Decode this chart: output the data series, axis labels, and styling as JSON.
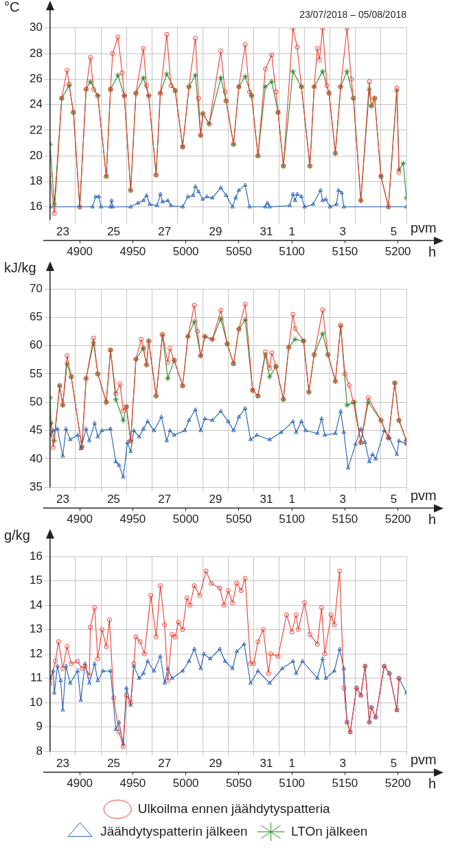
{
  "chart_data": [
    {
      "type": "line",
      "title": "23/07/2018 – 05/08/2018",
      "ylabel": "°C",
      "xlabel": "h",
      "x2label": "pvm",
      "xlim": [
        4872,
        5208
      ],
      "xticks": [
        4900,
        4950,
        5000,
        5050,
        5100,
        5150,
        5200
      ],
      "x2lim": [
        "2018-07-23T00:00",
        "2018-08-06T00:00"
      ],
      "x2ticks": [
        {
          "value": "2018-07-23T00:00",
          "label": null
        },
        {
          "value": "2018-07-23T12:00",
          "label": "23"
        },
        {
          "value": "2018-07-24T00:00",
          "label": null
        },
        {
          "value": "2018-07-25T00:00",
          "label": null
        },
        {
          "value": "2018-07-25T12:00",
          "label": "25"
        },
        {
          "value": "2018-07-26T00:00",
          "label": null
        },
        {
          "value": "2018-07-27T00:00",
          "label": null
        },
        {
          "value": "2018-07-27T12:00",
          "label": "27"
        },
        {
          "value": "2018-07-28T00:00",
          "label": null
        },
        {
          "value": "2018-07-29T00:00",
          "label": null
        },
        {
          "value": "2018-07-29T12:00",
          "label": "29"
        },
        {
          "value": "2018-07-30T00:00",
          "label": null
        },
        {
          "value": "2018-07-31T00:00",
          "label": null
        },
        {
          "value": "2018-07-31T12:00",
          "label": "31"
        },
        {
          "value": "2018-08-01T00:00",
          "label": null
        },
        {
          "value": "2018-08-01T12:00",
          "label": "1"
        },
        {
          "value": "2018-08-02T00:00",
          "label": null
        },
        {
          "value": "2018-08-03T00:00",
          "label": null
        },
        {
          "value": "2018-08-03T12:00",
          "label": "3"
        },
        {
          "value": "2018-08-04T00:00",
          "label": null
        },
        {
          "value": "2018-08-05T00:00",
          "label": null
        },
        {
          "value": "2018-08-05T12:00",
          "label": "5"
        },
        {
          "value": "2018-08-06T00:00",
          "label": null
        }
      ],
      "ylim": [
        15,
        30
      ],
      "yticks": [
        16,
        18,
        20,
        22,
        24,
        26,
        28,
        30
      ],
      "grid": true,
      "legend": false,
      "series": [
        {
          "color": "#ee3b2f",
          "marker": "circle",
          "x": [
            4872,
            4876,
            4883,
            4888,
            4890,
            4894,
            4900,
            4906,
            4910,
            4913,
            4917,
            4925,
            4929,
            4931,
            4936,
            4940,
            4942,
            4948,
            4953,
            4960,
            4963,
            4965,
            4972,
            4976,
            4982,
            4986,
            4990,
            4997,
            5003,
            5009,
            5012,
            5014,
            5016,
            5022,
            5033,
            5037,
            5038,
            5045,
            5050,
            5056,
            5060,
            5062,
            5068,
            5075,
            5081,
            5085,
            5087,
            5092,
            5101,
            5105,
            5109,
            5117,
            5121,
            5124,
            5126,
            5129,
            5133,
            5135,
            5141,
            5146,
            5152,
            5156,
            5158,
            5165,
            5173,
            5175,
            5178,
            5184,
            5191,
            5199,
            5201
          ],
          "values": [
            18.5,
            15.5,
            24.5,
            26.7,
            25.6,
            23.4,
            16,
            25.2,
            27.7,
            25.2,
            24.7,
            18.4,
            25.2,
            28.0,
            29.3,
            26.5,
            24.7,
            17.3,
            24.9,
            28.4,
            25.5,
            24.7,
            18.5,
            24.9,
            29.5,
            25.5,
            25.1,
            20.7,
            25.4,
            29.2,
            24.5,
            21.6,
            23.3,
            22.5,
            28.2,
            25.0,
            24.3,
            20.9,
            25.4,
            28.7,
            25.0,
            24.7,
            20,
            26.8,
            27.9,
            25.0,
            23.4,
            19.2,
            30,
            28.5,
            25.4,
            19.2,
            25.4,
            28.4,
            27.5,
            30,
            25.5,
            24.9,
            20.2,
            25.4,
            30,
            26.0,
            24.5,
            16.5,
            25.8,
            23.9,
            24.5,
            18.4,
            16,
            25.3,
            18.7
          ]
        },
        {
          "color": "#1c5cb8",
          "marker": "triangle",
          "x": [
            4872,
            4912,
            4915,
            4918,
            4920,
            4929,
            4930,
            4931,
            4948,
            4955,
            4960,
            4963,
            4966,
            4973,
            4976,
            4978,
            4983,
            4986,
            4997,
            5002,
            5007,
            5009,
            5012,
            5016,
            5020,
            5025,
            5033,
            5038,
            5044,
            5047,
            5050,
            5056,
            5060,
            5075,
            5077,
            5079,
            5098,
            5101,
            5103,
            5105,
            5109,
            5112,
            5120,
            5127,
            5129,
            5132,
            5136,
            5142,
            5144,
            5147,
            5149,
            5208
          ],
          "values": [
            16,
            16,
            16.8,
            16.8,
            16,
            16,
            16.5,
            16,
            16,
            16.3,
            16.5,
            16.9,
            16.2,
            16.1,
            17.0,
            16.4,
            16.5,
            16.1,
            16,
            16.8,
            16.9,
            17.6,
            17.2,
            16.6,
            16.8,
            16.7,
            17.5,
            16.9,
            16.0,
            16.7,
            17.3,
            17.7,
            16.0,
            16.0,
            16.3,
            16.0,
            16.1,
            17.0,
            16.5,
            17.0,
            16.8,
            16.0,
            16.2,
            17.3,
            16.5,
            16.6,
            16.0,
            16.2,
            17.3,
            17.1,
            16.0,
            16.0
          ]
        },
        {
          "color": "#2a8a2a",
          "marker": "cross",
          "x": [
            4872,
            4876,
            4883,
            4890,
            4894,
            4900,
            4906,
            4910,
            4917,
            4925,
            4929,
            4936,
            4942,
            4948,
            4953,
            4960,
            4965,
            4972,
            4976,
            4982,
            4990,
            4997,
            5003,
            5009,
            5014,
            5016,
            5022,
            5033,
            5038,
            5045,
            5050,
            5056,
            5062,
            5068,
            5075,
            5081,
            5087,
            5092,
            5101,
            5109,
            5117,
            5121,
            5129,
            5135,
            5141,
            5146,
            5152,
            5158,
            5165,
            5173,
            5175,
            5178,
            5184,
            5191,
            5199,
            5201,
            5205,
            5208
          ],
          "values": [
            20.9,
            16.2,
            24.5,
            25.5,
            23.4,
            16,
            25.2,
            25.8,
            24.7,
            18.4,
            25.2,
            26.3,
            24.7,
            17.3,
            24.9,
            26.1,
            24.7,
            18.5,
            24.9,
            26.4,
            25.1,
            20.7,
            25.4,
            26.3,
            21.6,
            23.3,
            22.5,
            26.1,
            24.3,
            20.9,
            25.4,
            26.2,
            24.7,
            20,
            25.4,
            25.8,
            23.4,
            19.2,
            26.6,
            25.4,
            19.2,
            25.4,
            26.6,
            24.9,
            20.2,
            25.4,
            26.6,
            24.5,
            16.5,
            25.2,
            23.9,
            24.5,
            18.4,
            16,
            25.1,
            18.9,
            19.4,
            16.7
          ]
        }
      ]
    },
    {
      "type": "line",
      "ylabel": "kJ/kg",
      "xlabel": "h",
      "x2label": "pvm",
      "xlim": [
        4872,
        5208
      ],
      "xticks": [
        4900,
        4950,
        5000,
        5050,
        5100,
        5150,
        5200
      ],
      "x2lim": [
        "2018-07-23T00:00",
        "2018-08-06T00:00"
      ],
      "x2ticks": [
        {
          "value": "2018-07-23T00:00",
          "label": null
        },
        {
          "value": "2018-07-23T12:00",
          "label": "23"
        },
        {
          "value": "2018-07-24T00:00",
          "label": null
        },
        {
          "value": "2018-07-25T00:00",
          "label": null
        },
        {
          "value": "2018-07-25T12:00",
          "label": "25"
        },
        {
          "value": "2018-07-26T00:00",
          "label": null
        },
        {
          "value": "2018-07-27T00:00",
          "label": null
        },
        {
          "value": "2018-07-27T12:00",
          "label": "27"
        },
        {
          "value": "2018-07-28T00:00",
          "label": null
        },
        {
          "value": "2018-07-29T00:00",
          "label": null
        },
        {
          "value": "2018-07-29T12:00",
          "label": "29"
        },
        {
          "value": "2018-07-30T00:00",
          "label": null
        },
        {
          "value": "2018-07-31T00:00",
          "label": null
        },
        {
          "value": "2018-07-31T12:00",
          "label": "31"
        },
        {
          "value": "2018-08-01T00:00",
          "label": null
        },
        {
          "value": "2018-08-01T12:00",
          "label": "1"
        },
        {
          "value": "2018-08-02T00:00",
          "label": null
        },
        {
          "value": "2018-08-03T00:00",
          "label": null
        },
        {
          "value": "2018-08-03T12:00",
          "label": "3"
        },
        {
          "value": "2018-08-04T00:00",
          "label": null
        },
        {
          "value": "2018-08-05T00:00",
          "label": null
        },
        {
          "value": "2018-08-05T12:00",
          "label": "5"
        },
        {
          "value": "2018-08-06T00:00",
          "label": null
        }
      ],
      "ylim": [
        35,
        70
      ],
      "yticks": [
        35,
        40,
        45,
        50,
        55,
        60,
        65,
        70
      ],
      "grid": true,
      "legend": false,
      "series": [
        {
          "color": "#ee3b2f",
          "marker": "circle",
          "x": [
            4872,
            4875,
            4881,
            4884,
            4888,
            4892,
            4902,
            4906,
            4913,
            4917,
            4925,
            4929,
            4934,
            4938,
            4941,
            4944,
            4948,
            4953,
            4958,
            4960,
            4963,
            4965,
            4972,
            4978,
            4983,
            4985,
            4989,
            4997,
            5002,
            5008,
            5011,
            5014,
            5018,
            5025,
            5033,
            5039,
            5045,
            5050,
            5056,
            5063,
            5068,
            5075,
            5079,
            5081,
            5085,
            5092,
            5097,
            5101,
            5103,
            5111,
            5116,
            5121,
            5129,
            5134,
            5141,
            5146,
            5150,
            5154,
            5158,
            5165,
            5172,
            5184,
            5191,
            5197,
            5201,
            5208
          ],
          "values": [
            46.3,
            42,
            52.9,
            49.5,
            58.2,
            54.5,
            42.1,
            54.2,
            61.3,
            55.0,
            50,
            59.2,
            51.5,
            53.2,
            48.5,
            49.2,
            43.2,
            57.6,
            61.1,
            59.5,
            56.6,
            60.8,
            51.1,
            62,
            57,
            59.5,
            57.4,
            52.9,
            61.6,
            67.1,
            62.5,
            58.2,
            61.6,
            61.1,
            66.2,
            60.3,
            56.8,
            62.9,
            67.3,
            52.1,
            51.1,
            58.9,
            56.0,
            58.7,
            56.3,
            50.5,
            59.7,
            65.5,
            63,
            60.8,
            51.8,
            58.4,
            66.3,
            58.4,
            53.7,
            63.6,
            55,
            53,
            50,
            42.9,
            50.8,
            46.8,
            43.7,
            53.4,
            46.8,
            43.2
          ]
        },
        {
          "color": "#1c5cb8",
          "marker": "triangle",
          "x": [
            4872,
            4875,
            4879,
            4884,
            4887,
            4891,
            4898,
            4901,
            4906,
            4909,
            4914,
            4917,
            4921,
            4929,
            4934,
            4937,
            4941,
            4945,
            4948,
            4951,
            4956,
            4960,
            4964,
            4970,
            4977,
            4982,
            4985,
            4989,
            4999,
            5003,
            5009,
            5014,
            5018,
            5025,
            5033,
            5040,
            5045,
            5050,
            5056,
            5061,
            5067,
            5079,
            5090,
            5101,
            5104,
            5109,
            5113,
            5124,
            5128,
            5131,
            5141,
            5146,
            5149,
            5153,
            5160,
            5165,
            5169,
            5173,
            5176,
            5179,
            5187,
            5192,
            5199,
            5201,
            5208
          ],
          "values": [
            44.2,
            45,
            45.3,
            40.5,
            45.3,
            43.4,
            44.2,
            41.8,
            45.3,
            43.2,
            46.3,
            43.9,
            45,
            45.3,
            39.5,
            38.9,
            36.8,
            42.9,
            41.3,
            45,
            43.9,
            45.3,
            46.6,
            45,
            47.4,
            43.2,
            45,
            44.2,
            45,
            46.8,
            48.7,
            45,
            47.1,
            46.8,
            48.4,
            46.6,
            45,
            47.4,
            48.9,
            43.4,
            44.2,
            43.4,
            44.7,
            46.6,
            44.7,
            46.6,
            45,
            44.5,
            47.1,
            44.2,
            44.5,
            48.4,
            44.7,
            38.4,
            42.6,
            45.3,
            42.9,
            39.5,
            40.8,
            40,
            45,
            43.7,
            40.8,
            43.2,
            42.6
          ]
        },
        {
          "color": "#2a8a2a",
          "marker": "cross",
          "x": [
            4872,
            4873,
            4876,
            4881,
            4884,
            4888,
            4892,
            4902,
            4906,
            4913,
            4917,
            4925,
            4929,
            4934,
            4941,
            4944,
            4948,
            4953,
            4960,
            4963,
            4965,
            4972,
            4978,
            4983,
            4989,
            4997,
            5002,
            5008,
            5014,
            5018,
            5025,
            5033,
            5039,
            5045,
            5050,
            5056,
            5063,
            5068,
            5075,
            5079,
            5085,
            5092,
            5097,
            5103,
            5111,
            5116,
            5121,
            5129,
            5134,
            5141,
            5146,
            5152,
            5159,
            5165,
            5172,
            5184,
            5191,
            5197,
            5201,
            5208
          ],
          "values": [
            50.8,
            46.3,
            43.2,
            52.9,
            49.5,
            56.8,
            54.5,
            42.1,
            54.2,
            60.5,
            55.0,
            50,
            59.2,
            50.5,
            46.8,
            49.2,
            43.2,
            57.6,
            59.5,
            56.6,
            60.8,
            51.1,
            61.8,
            54.2,
            57.4,
            52.9,
            61.6,
            64.2,
            58.2,
            61.6,
            61.1,
            64.7,
            60.3,
            56.8,
            62.9,
            64.5,
            52.1,
            51.1,
            58.4,
            54.5,
            56.3,
            50.5,
            59.7,
            61.1,
            60.8,
            51.8,
            58.4,
            62.1,
            58.4,
            53.7,
            63.4,
            49.5,
            50,
            42.9,
            50,
            46.8,
            43.7,
            53.4,
            46.8,
            43.2
          ]
        }
      ]
    },
    {
      "type": "line",
      "ylabel": "g/kg",
      "xlabel": "h",
      "x2label": "pvm",
      "xlim": [
        4872,
        5208
      ],
      "xticks": [
        4900,
        4950,
        5000,
        5050,
        5100,
        5150,
        5200
      ],
      "x2lim": [
        "2018-07-23T00:00",
        "2018-08-06T00:00"
      ],
      "x2ticks": [
        {
          "value": "2018-07-23T00:00",
          "label": null
        },
        {
          "value": "2018-07-23T12:00",
          "label": "23"
        },
        {
          "value": "2018-07-24T00:00",
          "label": null
        },
        {
          "value": "2018-07-25T00:00",
          "label": null
        },
        {
          "value": "2018-07-25T12:00",
          "label": "25"
        },
        {
          "value": "2018-07-26T00:00",
          "label": null
        },
        {
          "value": "2018-07-27T00:00",
          "label": null
        },
        {
          "value": "2018-07-27T12:00",
          "label": "27"
        },
        {
          "value": "2018-07-28T00:00",
          "label": null
        },
        {
          "value": "2018-07-29T00:00",
          "label": null
        },
        {
          "value": "2018-07-29T12:00",
          "label": "29"
        },
        {
          "value": "2018-07-30T00:00",
          "label": null
        },
        {
          "value": "2018-07-31T00:00",
          "label": null
        },
        {
          "value": "2018-07-31T12:00",
          "label": "31"
        },
        {
          "value": "2018-08-01T00:00",
          "label": null
        },
        {
          "value": "2018-08-01T12:00",
          "label": "1"
        },
        {
          "value": "2018-08-02T00:00",
          "label": null
        },
        {
          "value": "2018-08-03T00:00",
          "label": null
        },
        {
          "value": "2018-08-03T12:00",
          "label": "3"
        },
        {
          "value": "2018-08-04T00:00",
          "label": null
        },
        {
          "value": "2018-08-05T00:00",
          "label": null
        },
        {
          "value": "2018-08-05T12:00",
          "label": "5"
        },
        {
          "value": "2018-08-06T00:00",
          "label": null
        }
      ],
      "ylim": [
        8,
        16
      ],
      "yticks": [
        8,
        9,
        10,
        11,
        12,
        13,
        14,
        15,
        16
      ],
      "grid": true,
      "legend": "bottom",
      "series": [
        {
          "name": "Ulkoilma ennen jäähdytyspatteria",
          "color": "#ee3b2f",
          "marker": "circle",
          "x": [
            4872,
            4877,
            4880,
            4884,
            4888,
            4892,
            4898,
            4902,
            4905,
            4909,
            4910,
            4914,
            4917,
            4921,
            4925,
            4928,
            4932,
            4937,
            4941,
            4944,
            4948,
            4951,
            4953,
            4957,
            4961,
            4967,
            4972,
            4976,
            4980,
            4983,
            4987,
            4990,
            4993,
            4997,
            5001,
            5004,
            5008,
            5013,
            5019,
            5024,
            5032,
            5036,
            5040,
            5044,
            5048,
            5052,
            5056,
            5061,
            5064,
            5068,
            5073,
            5078,
            5080,
            5087,
            5095,
            5100,
            5104,
            5106,
            5112,
            5117,
            5124,
            5128,
            5131,
            5137,
            5140,
            5145,
            5149,
            5152,
            5155,
            5161,
            5165,
            5169,
            5173,
            5175,
            5179,
            5187,
            5192,
            5199,
            5201
          ],
          "values": [
            10.8,
            11.7,
            12.5,
            11.4,
            12.3,
            11.6,
            11.7,
            11.4,
            11.5,
            11.1,
            13.1,
            13.9,
            11.8,
            13.0,
            12.3,
            13.4,
            10.2,
            8.8,
            8.2,
            10.3,
            10.0,
            11.6,
            12.7,
            12.5,
            12.0,
            14.4,
            12.7,
            14.8,
            13.2,
            10.9,
            12.8,
            12.7,
            13.3,
            13.0,
            14.3,
            14.0,
            14.8,
            14.4,
            15.4,
            14.9,
            14.7,
            14.0,
            14.6,
            14.1,
            14.9,
            14.6,
            15.1,
            11.6,
            11.6,
            12.5,
            13.0,
            11.2,
            12.0,
            11.9,
            13.6,
            12.9,
            13.6,
            13.0,
            14.1,
            12.8,
            12.4,
            13.9,
            12.0,
            13.6,
            13.2,
            15.4,
            10.6,
            9.2,
            8.8,
            10.6,
            10.3,
            11.5,
            9.2,
            9.8,
            9.4,
            11.5,
            11.2,
            9.7,
            11.0
          ]
        },
        {
          "name": "Jäähdytyspatterin jälkeen",
          "color": "#1c5cb8",
          "marker": "triangle",
          "x": [
            4872,
            4875,
            4876,
            4879,
            4882,
            4884,
            4887,
            4891,
            4898,
            4901,
            4905,
            4909,
            4914,
            4917,
            4922,
            4929,
            4934,
            4937,
            4941,
            4944,
            4948,
            4951,
            4956,
            4960,
            4964,
            4970,
            4976,
            4980,
            4983,
            4987,
            4997,
            5003,
            5008,
            5014,
            5017,
            5023,
            5032,
            5037,
            5044,
            5048,
            5055,
            5061,
            5068,
            5079,
            5091,
            5101,
            5104,
            5110,
            5124,
            5129,
            5132,
            5140,
            5145,
            5149,
            5152,
            5155,
            5161,
            5165,
            5169,
            5173,
            5175,
            5179,
            5187,
            5192,
            5199,
            5201,
            5208
          ],
          "values": [
            11.0,
            11.3,
            10.4,
            11.5,
            10.9,
            9.7,
            11.5,
            10.8,
            11.3,
            10.1,
            11.6,
            10.8,
            11.6,
            10.9,
            11.3,
            11.3,
            8.9,
            9.2,
            8.3,
            10.6,
            9.9,
            11.5,
            11.0,
            11.2,
            11.7,
            11.3,
            11.9,
            10.8,
            11.4,
            11.0,
            11.3,
            11.7,
            12.2,
            11.4,
            12.0,
            11.8,
            12.2,
            11.7,
            11.4,
            12.1,
            12.4,
            10.8,
            11.3,
            10.8,
            11.4,
            11.7,
            11.2,
            11.7,
            11.0,
            11.8,
            11.0,
            11.3,
            12.2,
            11.4,
            9.2,
            8.8,
            10.6,
            10.3,
            11.5,
            9.2,
            9.8,
            9.4,
            11.5,
            11.2,
            9.7,
            11.0,
            10.4
          ]
        },
        {
          "name": "LTOn jälkeen",
          "color": "#2a8a2a",
          "marker": "cross"
        }
      ]
    }
  ]
}
